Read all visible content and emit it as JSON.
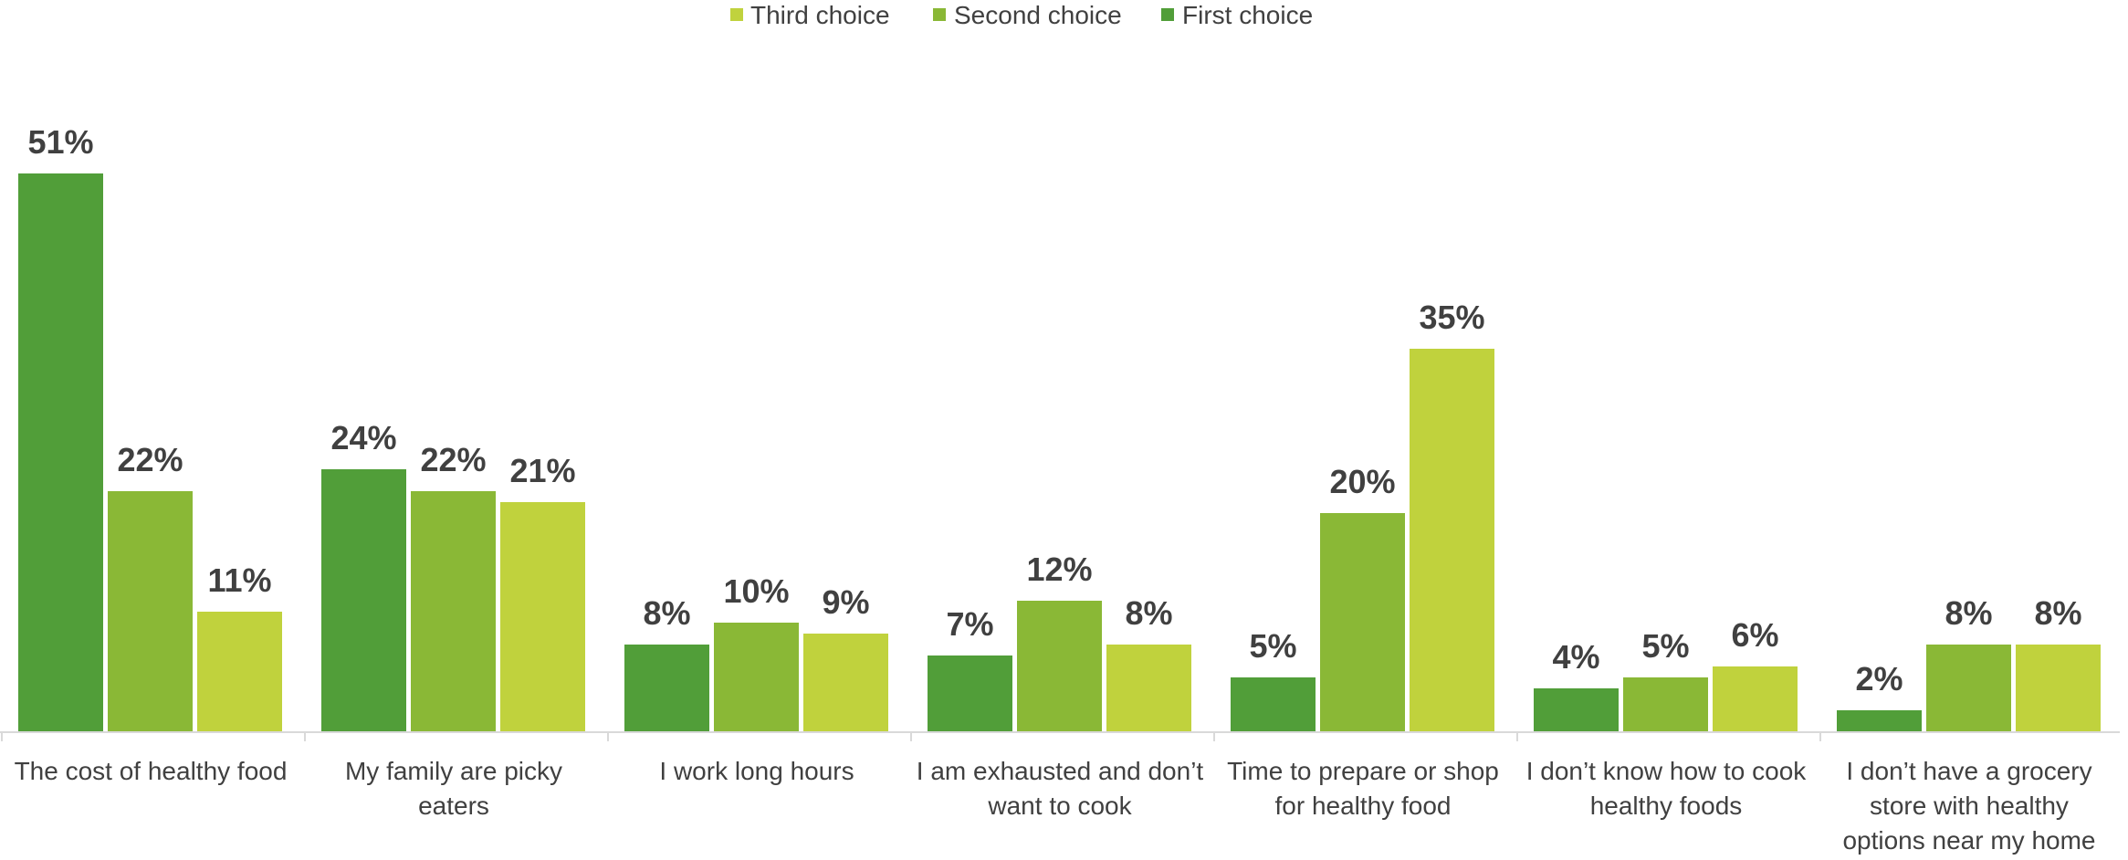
{
  "chart_data": {
    "type": "bar",
    "title": "",
    "xlabel": "",
    "ylabel": "",
    "ylim": [
      0,
      55
    ],
    "grid": false,
    "legend_position": "top-center",
    "legend_order": [
      "Third choice",
      "Second choice",
      "First choice"
    ],
    "categories": [
      "The cost of healthy food",
      "My family are picky eaters",
      "I work long hours",
      "I am exhausted and don’t want to cook",
      "Time to prepare or shop for healthy food",
      "I don’t know how to cook healthy foods",
      "I don’t have a grocery store with healthy options near my home"
    ],
    "category_lines": [
      [
        "The cost of healthy food"
      ],
      [
        "My family are picky",
        "eaters"
      ],
      [
        "I work long hours"
      ],
      [
        "I am exhausted and don’t",
        "want to cook"
      ],
      [
        "Time to prepare or shop",
        "for healthy food"
      ],
      [
        "I don’t know how to cook",
        "healthy foods"
      ],
      [
        "I don’t have a grocery",
        "store with healthy",
        "options near my home"
      ]
    ],
    "series": [
      {
        "name": "First choice",
        "color": "#519e39",
        "values": [
          51,
          24,
          8,
          7,
          5,
          4,
          2
        ]
      },
      {
        "name": "Second choice",
        "color": "#8ab836",
        "values": [
          22,
          22,
          10,
          12,
          20,
          5,
          8
        ]
      },
      {
        "name": "Third choice",
        "color": "#c0d23d",
        "values": [
          11,
          21,
          9,
          8,
          35,
          6,
          8
        ]
      }
    ],
    "value_suffix": "%",
    "axis_color": "#d9d9d9",
    "text_color": "#404040"
  }
}
